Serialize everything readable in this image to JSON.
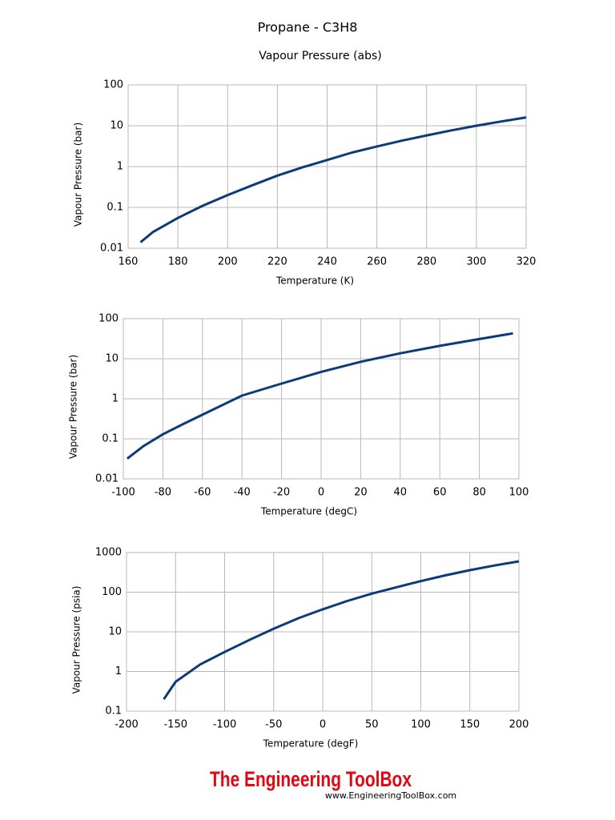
{
  "title": "Propane - C3H8",
  "subtitle": "Vapour Pressure (abs)",
  "chart_data": [
    {
      "type": "line",
      "xlabel": "Temperature  (K)",
      "ylabel": "Vapour Pressure (bar)",
      "x": [
        165,
        170,
        180,
        190,
        200,
        210,
        220,
        230,
        240,
        250,
        260,
        270,
        280,
        290,
        300,
        310,
        320
      ],
      "values": [
        0.014,
        0.025,
        0.055,
        0.11,
        0.2,
        0.35,
        0.6,
        0.95,
        1.45,
        2.2,
        3.1,
        4.3,
        5.8,
        7.7,
        10,
        12.7,
        16
      ],
      "color": "#0b3c78",
      "xlim": [
        160,
        320
      ],
      "xticks": [
        160,
        180,
        200,
        220,
        240,
        260,
        280,
        300,
        320
      ],
      "ylim": [
        0.01,
        100
      ],
      "yticks": [
        0.01,
        0.1,
        1,
        10,
        100
      ],
      "log_y": true,
      "grid": true
    },
    {
      "type": "line",
      "xlabel": "Temperature   (degC)",
      "ylabel": "Vapour Pressure (bar)",
      "x": [
        -98,
        -90,
        -80,
        -70,
        -60,
        -40,
        -20,
        0,
        20,
        40,
        60,
        80,
        97
      ],
      "values": [
        0.032,
        0.065,
        0.13,
        0.23,
        0.4,
        1.2,
        2.4,
        4.7,
        8.4,
        13.7,
        21,
        31,
        43
      ],
      "color": "#0b3c78",
      "xlim": [
        -100,
        100
      ],
      "xticks": [
        -100,
        -80,
        -60,
        -40,
        -20,
        0,
        20,
        40,
        60,
        80,
        100
      ],
      "ylim": [
        0.01,
        100
      ],
      "yticks": [
        0.01,
        0.1,
        1,
        10,
        100
      ],
      "log_y": true,
      "grid": true
    },
    {
      "type": "line",
      "xlabel": "Temperature   (degF)",
      "ylabel": "Vapour Pressure  (psia)",
      "x": [
        -162,
        -150,
        -125,
        -100,
        -75,
        -50,
        -25,
        0,
        25,
        50,
        75,
        100,
        125,
        150,
        175,
        200
      ],
      "values": [
        0.2,
        0.55,
        1.5,
        3.1,
        6.2,
        12,
        22,
        37,
        60,
        92,
        133,
        190,
        265,
        360,
        470,
        600
      ],
      "color": "#0b3c78",
      "xlim": [
        -200,
        200
      ],
      "xticks": [
        -200,
        -150,
        -100,
        -50,
        0,
        50,
        100,
        150,
        200
      ],
      "ylim": [
        0.1,
        1000
      ],
      "yticks": [
        0.1,
        1,
        10,
        100,
        1000
      ],
      "log_y": true,
      "grid": true
    }
  ],
  "footer": {
    "brand": "The Engineering ToolBox",
    "url": "www.EngineeringToolBox.com"
  }
}
